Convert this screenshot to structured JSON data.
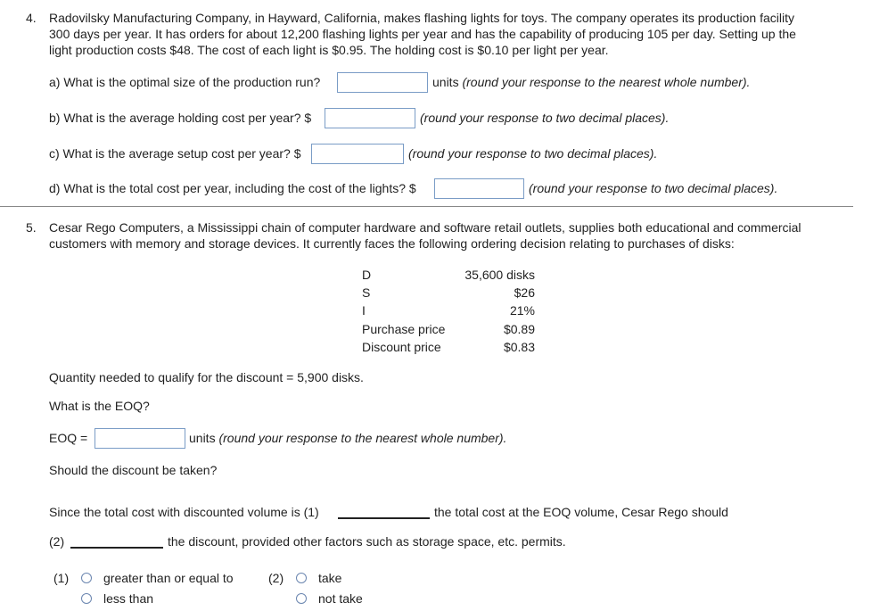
{
  "q4": {
    "number": "4.",
    "lines": [
      "Radovilsky Manufacturing Company, in Hayward, California, makes flashing lights for toys. The company operates its production facility",
      "300 days per year. It has orders for about 12,200 flashing lights per year and has the capability of producing 105 per day. Setting up the",
      "light production costs $48. The cost of each light is $0.95. The holding cost is $0.10 per light per year."
    ],
    "a": {
      "question": "a) What is the optimal size of the production run?",
      "value": "",
      "suffix": "units",
      "hint": "(round your response to the nearest whole number)."
    },
    "b": {
      "question": "b) What is the average holding cost per year? $",
      "value": "",
      "hint": "(round your response to two decimal places)."
    },
    "c": {
      "question": "c) What is the average setup cost per year? $",
      "value": "",
      "hint": "(round your response to two decimal places)."
    },
    "d": {
      "question": "d) What is the total cost per year, including the cost of the lights? $",
      "value": "",
      "hint": "(round your response to two decimal places)."
    }
  },
  "q5": {
    "number": "5.",
    "lines": [
      "Cesar Rego Computers, a Mississippi chain of computer hardware and software retail outlets, supplies both educational and commercial",
      "customers with memory and storage devices. It currently faces the following ordering decision relating to purchases of disks:"
    ],
    "table": [
      {
        "label": "D",
        "value": "35,600 disks"
      },
      {
        "label": "S",
        "value": "$26"
      },
      {
        "label": "I",
        "value": "21%"
      },
      {
        "label": "Purchase price",
        "value": "$0.89"
      },
      {
        "label": "Discount price",
        "value": "$0.83"
      }
    ],
    "quantity_text": "Quantity needed to qualify for the discount = 5,900 disks.",
    "eoq_question": "What is the EOQ?",
    "eoq_label": "EOQ =",
    "eoq_value": "",
    "eoq_suffix": "units",
    "eoq_hint": "(round your response to the nearest whole number).",
    "discount_question": "Should the discount be taken?",
    "since_text": "Since the total cost with discounted volume is (1)",
    "since_after": "the total cost at the EOQ volume, Cesar Rego should",
    "blank2_label": "(2)",
    "blank2_after": "the discount, provided other factors such as storage space, etc. permits.",
    "choices1": {
      "label": "(1)",
      "options": [
        "greater than or equal to",
        "less than"
      ]
    },
    "choices2": {
      "label": "(2)",
      "options": [
        "take",
        "not take"
      ]
    }
  }
}
